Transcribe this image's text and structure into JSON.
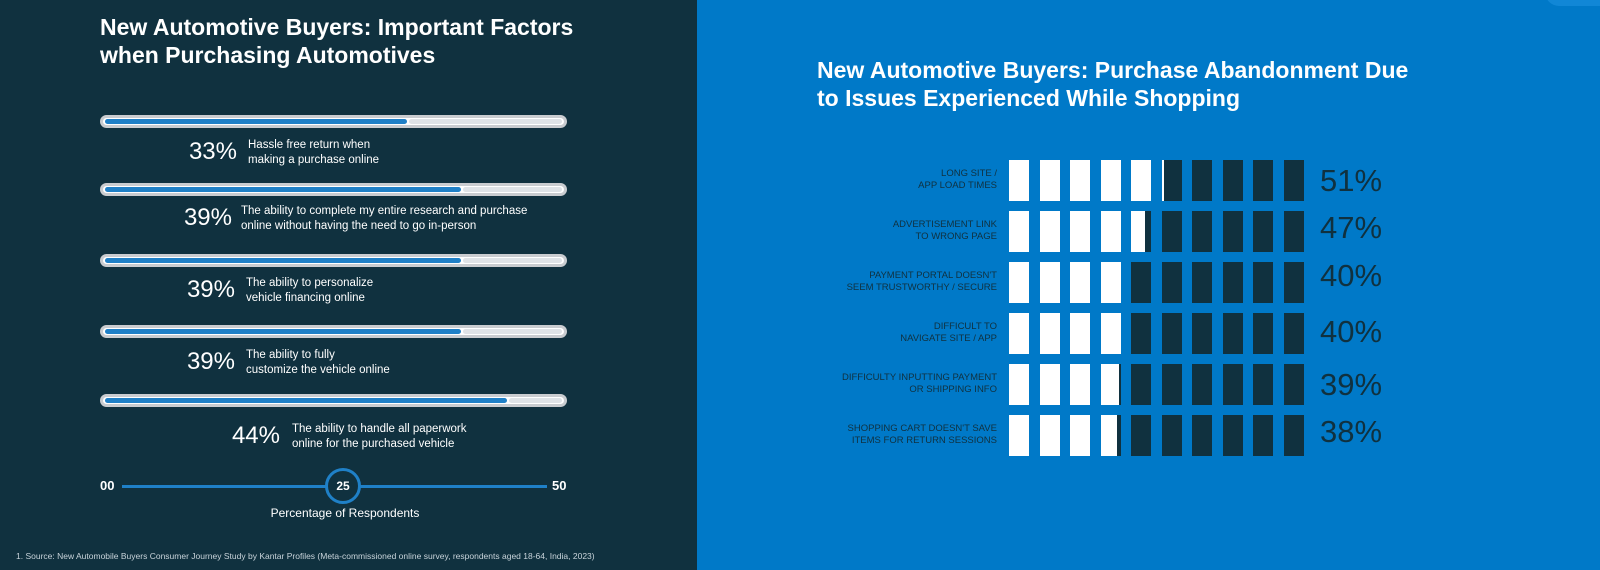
{
  "left_panel": {
    "title": "New Automotive Buyers: Important Factors when Purchasing Automotives",
    "axis": {
      "min_label": "00",
      "mid_label": "25",
      "max_label": "50",
      "title": "Percentage of Respondents"
    },
    "source": "1. Source: New Automobile Buyers Consumer Journey Study by Kantar Profiles (Meta-commissioned online survey, respondents aged 18-64, India, 2023)"
  },
  "right_panel": {
    "title": "New Automotive Buyers: Purchase Abandonment Due to Issues Experienced While Shopping"
  },
  "colors": {
    "left_bg": "#10313f",
    "right_bg": "#0079c8",
    "accent": "#1f80c7",
    "dark": "#10313f",
    "white": "#ffffff"
  },
  "chart_data": [
    {
      "type": "bar",
      "orientation": "horizontal",
      "title": "New Automotive Buyers: Important Factors when Purchasing Automotives",
      "xlabel": "Percentage of Respondents",
      "xlim": [
        0,
        50
      ],
      "ticks": [
        "00",
        "25",
        "50"
      ],
      "categories": [
        "Hassle free return when making a purchase online",
        "The ability to complete my entire research and purchase online without having the need to go in-person",
        "The ability to personalize vehicle financing online",
        "The ability to fully customize the vehicle online",
        "The ability to handle all paperwork online for the purchased vehicle"
      ],
      "values": [
        33,
        39,
        39,
        39,
        44
      ],
      "value_labels": [
        "33%",
        "39%",
        "39%",
        "39%",
        "44%"
      ],
      "desc_lines": [
        [
          "Hassle free return when",
          "making a purchase online"
        ],
        [
          "The ability to complete my entire research and purchase",
          "online without having the need to go in-person"
        ],
        [
          "The ability to personalize",
          "vehicle financing online"
        ],
        [
          "The ability to fully",
          "customize the vehicle online"
        ],
        [
          "The ability to handle all paperwork",
          "online for the purchased vehicle"
        ]
      ]
    },
    {
      "type": "bar",
      "orientation": "horizontal",
      "title": "New Automotive Buyers: Purchase Abandonment Due to Issues Experienced While Shopping",
      "xlim": [
        0,
        100
      ],
      "categories": [
        "LONG SITE / APP LOAD TIMES",
        "ADVERTISEMENT LINK TO WRONG PAGE",
        "PAYMENT PORTAL DOESN'T SEEM TRUSTWORTHY / SECURE",
        "DIFFICULT TO NAVIGATE SITE / APP",
        "DIFFICULTY INPUTTING PAYMENT OR SHIPPING INFO",
        "SHOPPING CART DOESN'T SAVE ITEMS FOR RETURN SESSIONS"
      ],
      "label_lines": [
        [
          "LONG SITE /",
          "APP LOAD TIMES"
        ],
        [
          "ADVERTISEMENT LINK",
          "TO WRONG PAGE"
        ],
        [
          "PAYMENT PORTAL DOESN'T",
          "SEEM TRUSTWORTHY / SECURE"
        ],
        [
          "DIFFICULT TO",
          "NAVIGATE SITE / APP"
        ],
        [
          "DIFFICULTY  INPUTTING PAYMENT",
          "OR SHIPPING INFO"
        ],
        [
          "SHOPPING CART DOESN'T SAVE",
          "ITEMS FOR RETURN SESSIONS"
        ]
      ],
      "values": [
        51,
        47,
        40,
        40,
        39,
        38
      ],
      "value_labels": [
        "51%",
        "47%",
        "40%",
        "40%",
        "39%",
        "38%"
      ]
    }
  ]
}
